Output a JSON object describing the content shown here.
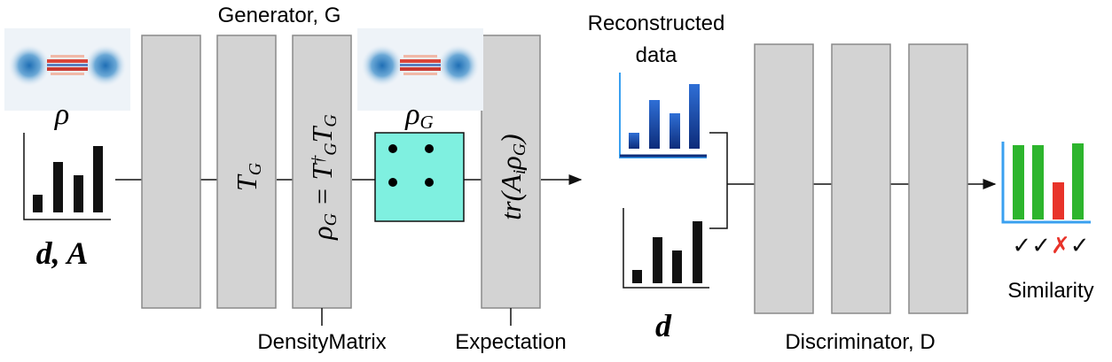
{
  "generator": {
    "title": "Generator, G",
    "input_state": [
      {
        "text": "ρ"
      }
    ],
    "input_data": "d, A",
    "layers": [
      {
        "math": []
      },
      {
        "math": [
          {
            "text": "T"
          },
          {
            "text": "G",
            "sub": true
          }
        ]
      },
      {
        "math": [
          {
            "text": "ρ"
          },
          {
            "text": "G",
            "sub": true
          },
          {
            "text": " = T"
          },
          {
            "text": "†",
            "sup": true
          },
          {
            "text": "G",
            "sub": true
          },
          {
            "text": "T"
          },
          {
            "text": "G",
            "sub": true
          }
        ],
        "caption": "DensityMatrix"
      },
      {
        "math": [
          {
            "text": "tr(A"
          },
          {
            "text": "i",
            "sub": true
          },
          {
            "text": "ρ"
          },
          {
            "text": "G",
            "sub": true
          },
          {
            "text": ")"
          }
        ],
        "caption": "Expectation"
      }
    ],
    "output_state": [
      {
        "text": "ρ"
      },
      {
        "text": "G",
        "sub": true
      }
    ]
  },
  "discriminator": {
    "title": "Discriminator, D",
    "reconstructed_label": [
      "Reconstructed",
      "data"
    ],
    "data_label": "d",
    "output_label": "Similarity",
    "checks": [
      {
        "symbol": "✓",
        "color": "#111"
      },
      {
        "symbol": "✓",
        "color": "#111"
      },
      {
        "symbol": "✗",
        "color": "#e8332a"
      },
      {
        "symbol": "✓",
        "color": "#111"
      }
    ]
  }
}
